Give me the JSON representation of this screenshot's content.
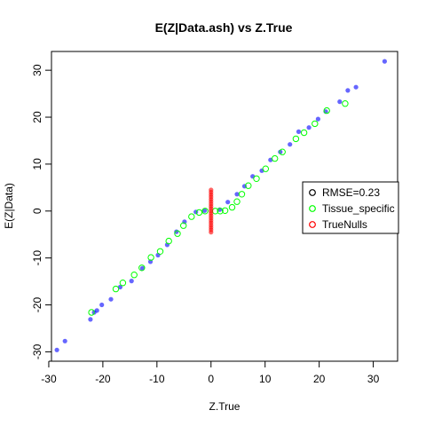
{
  "chart_data": {
    "type": "scatter",
    "title": "E(Z|Data.ash) vs Z.True",
    "xlabel": "Z.True",
    "ylabel": "E(Z|Data)",
    "xlim": [
      -29.5,
      34.5
    ],
    "ylim": [
      -32,
      34
    ],
    "xticks": [
      -30,
      -20,
      -10,
      0,
      10,
      20,
      30
    ],
    "yticks": [
      -30,
      -20,
      -10,
      0,
      10,
      20,
      30
    ],
    "grid": false,
    "legend_position": "right",
    "legend": [
      {
        "label": "RMSE=0.23",
        "color": "#000000"
      },
      {
        "label": "Tissue_specific",
        "color": "#00ff00"
      },
      {
        "label": "TrueNulls",
        "color": "#ff0000"
      }
    ],
    "series": [
      {
        "name": "RMSE=0.23",
        "color": "#0000ff",
        "marker": "filled-circle",
        "x": [
          -28.5,
          -27,
          -22.3,
          -21.6,
          -21.1,
          -20.2,
          -18.5,
          -16.8,
          -14.7,
          -12.7,
          -11.2,
          -9.8,
          -8.1,
          -6.4,
          -4.9,
          -2.8,
          -1.2,
          1.6,
          3.1,
          4.8,
          6.2,
          7.7,
          9.4,
          11.0,
          12.8,
          14.6,
          16.2,
          18.1,
          19.8,
          21.2,
          23.8,
          25.3,
          26.8,
          32.1
        ],
        "y": [
          -29.6,
          -27.7,
          -23.1,
          -21.6,
          -21.2,
          -20.0,
          -18.8,
          -16.2,
          -14.9,
          -12.2,
          -10.8,
          -9.4,
          -7.2,
          -4.4,
          -2.3,
          -0.2,
          0.1,
          0.3,
          1.9,
          3.6,
          5.3,
          7.4,
          8.6,
          10.9,
          12.6,
          14.2,
          16.9,
          17.8,
          19.6,
          21.2,
          23.3,
          25.7,
          26.4,
          31.9
        ]
      },
      {
        "name": "Tissue_specific",
        "color": "#00ff00",
        "marker": "open-circle",
        "x": [
          -22.1,
          -17.6,
          -16.3,
          -14.2,
          -12.8,
          -11.1,
          -9.4,
          -7.8,
          -6.2,
          -5.1,
          -3.6,
          -2.2,
          -1.1,
          0.8,
          1.7,
          2.6,
          3.9,
          4.8,
          5.7,
          6.9,
          8.4,
          10.1,
          11.8,
          13.2,
          15.7,
          17.2,
          19.2,
          21.4,
          24.8
        ],
        "y": [
          -21.6,
          -16.6,
          -15.3,
          -13.6,
          -12.1,
          -9.9,
          -8.6,
          -6.4,
          -4.8,
          -3.1,
          -1.2,
          -0.3,
          0.0,
          0.0,
          0.0,
          0.1,
          0.8,
          2.0,
          3.6,
          5.4,
          6.9,
          9.0,
          11.2,
          12.6,
          15.4,
          16.7,
          18.6,
          21.4,
          22.9
        ]
      },
      {
        "name": "TrueNulls",
        "color": "#ff0000",
        "marker": "filled-circle",
        "x": [
          0,
          0,
          0,
          0,
          0,
          0,
          0,
          0,
          0,
          0,
          0,
          0,
          0,
          0,
          0,
          0,
          0,
          0,
          0
        ],
        "y": [
          -4.5,
          -4.0,
          -3.5,
          -3.0,
          -2.5,
          -2.0,
          -1.5,
          -1.0,
          -0.5,
          0.0,
          0.5,
          1.0,
          1.5,
          2.0,
          2.5,
          3.0,
          3.5,
          4.0,
          4.5
        ]
      }
    ]
  }
}
